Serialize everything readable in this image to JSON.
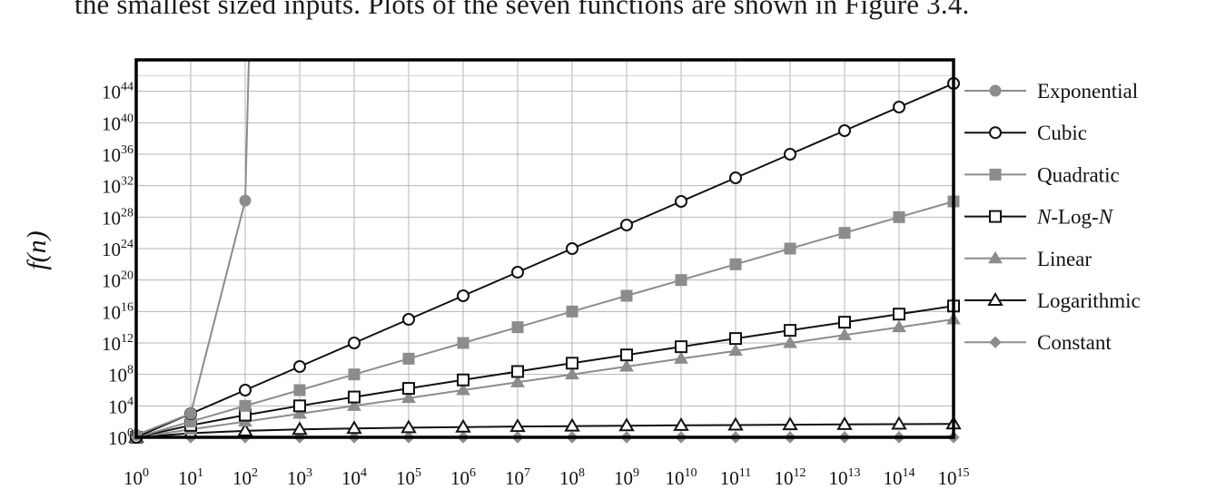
{
  "document": {
    "header_text": "the smallest sized inputs. Plots of the seven functions are shown in Figure 3.4."
  },
  "chart_data": {
    "type": "line",
    "title": "",
    "xlabel": "",
    "ylabel": "f(n)",
    "x_scale": "log10",
    "y_scale": "log10",
    "xlim": [
      1,
      1000000000000000.0
    ],
    "ylim": [
      1,
      1e+48
    ],
    "grid": true,
    "legend_position": "right",
    "x_tick_exponents": [
      0,
      1,
      2,
      3,
      4,
      5,
      6,
      7,
      8,
      9,
      10,
      11,
      12,
      13,
      14,
      15
    ],
    "y_tick_exponents": [
      0,
      4,
      8,
      12,
      16,
      20,
      24,
      28,
      32,
      36,
      40,
      44
    ],
    "tick_base": "10",
    "x": [
      1,
      10.0,
      100.0,
      1000.0,
      10000.0,
      100000.0,
      1000000.0,
      10000000.0,
      100000000.0,
      1000000000.0,
      10000000000.0,
      100000000000.0,
      1000000000000.0,
      10000000000000.0,
      100000000000000.0,
      1000000000000000.0
    ],
    "series": [
      {
        "name": "Exponential",
        "color": "#8c8c8c",
        "marker": "filled-circle",
        "line_continues_off_chart": true,
        "points": [
          [
            1,
            2
          ],
          [
            10,
            1024
          ],
          [
            100,
            1.27e+30
          ]
        ]
      },
      {
        "name": "Cubic",
        "color": "#111111",
        "marker": "open-circle",
        "values": [
          1,
          1000.0,
          1000000.0,
          1000000000.0,
          1000000000000.0,
          1000000000000000.0,
          1e+18,
          1e+21,
          1e+24,
          1e+27,
          1e+30,
          1e+33,
          1e+36,
          1e+39,
          1e+42,
          1e+45
        ]
      },
      {
        "name": "Quadratic",
        "color": "#8c8c8c",
        "marker": "filled-square",
        "values": [
          1,
          100.0,
          10000.0,
          1000000.0,
          100000000.0,
          10000000000.0,
          1000000000000.0,
          100000000000000.0,
          1e+16,
          1e+18,
          1e+20,
          1e+22,
          1e+24,
          1e+26,
          1e+28,
          1e+30
        ]
      },
      {
        "name": "N-Log-N",
        "color": "#111111",
        "marker": "open-square",
        "values": [
          0,
          33.2,
          664,
          9966,
          133000.0,
          1660000.0,
          19900000.0,
          233000000.0,
          2660000000.0,
          29900000000.0,
          332000000000.0,
          3650000000000.0,
          39900000000000.0,
          432000000000000.0,
          4650000000000000.0,
          4.98e+16
        ]
      },
      {
        "name": "Linear",
        "color": "#8c8c8c",
        "marker": "filled-triangle",
        "values": [
          1,
          10.0,
          100.0,
          1000.0,
          10000.0,
          100000.0,
          1000000.0,
          10000000.0,
          100000000.0,
          1000000000.0,
          10000000000.0,
          100000000000.0,
          1000000000000.0,
          10000000000000.0,
          100000000000000.0,
          1000000000000000.0
        ]
      },
      {
        "name": "Logarithmic",
        "color": "#111111",
        "marker": "open-triangle",
        "values": [
          0,
          3.32,
          6.64,
          9.97,
          13.3,
          16.6,
          19.9,
          23.3,
          26.6,
          29.9,
          33.2,
          36.5,
          39.9,
          43.2,
          46.5,
          49.8
        ]
      },
      {
        "name": "Constant",
        "color": "#8c8c8c",
        "marker": "filled-diamond",
        "values": [
          1,
          1,
          1,
          1,
          1,
          1,
          1,
          1,
          1,
          1,
          1,
          1,
          1,
          1,
          1,
          1
        ]
      }
    ]
  }
}
